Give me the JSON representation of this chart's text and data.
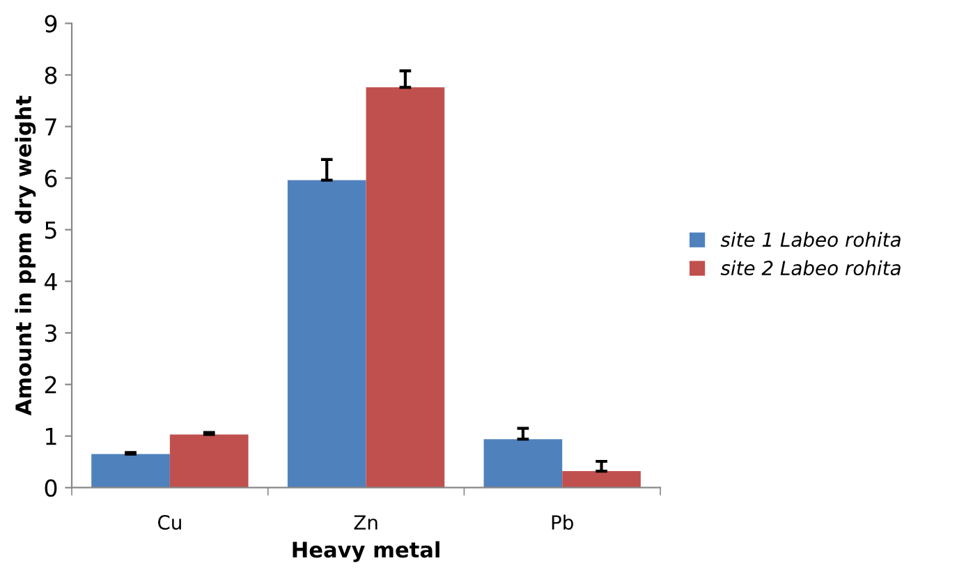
{
  "chart_data": {
    "type": "bar",
    "xlabel": "Heavy metal",
    "ylabel": "Amount in ppm dry weight",
    "categories": [
      "Cu",
      "Zn",
      "Pb"
    ],
    "series": [
      {
        "name": "site 1 Labeo rohita",
        "color": "#4f81bd",
        "values": [
          0.65,
          5.96,
          0.94
        ],
        "errors": [
          0.03,
          0.4,
          0.21
        ]
      },
      {
        "name": "site 2 Labeo rohita",
        "color": "#c0504d",
        "values": [
          1.03,
          7.76,
          0.32
        ],
        "errors": [
          0.04,
          0.32,
          0.19
        ]
      }
    ],
    "ylim": [
      0,
      9
    ],
    "yticks": [
      0,
      1,
      2,
      3,
      4,
      5,
      6,
      7,
      8,
      9
    ],
    "grid": false,
    "legend": "right"
  }
}
